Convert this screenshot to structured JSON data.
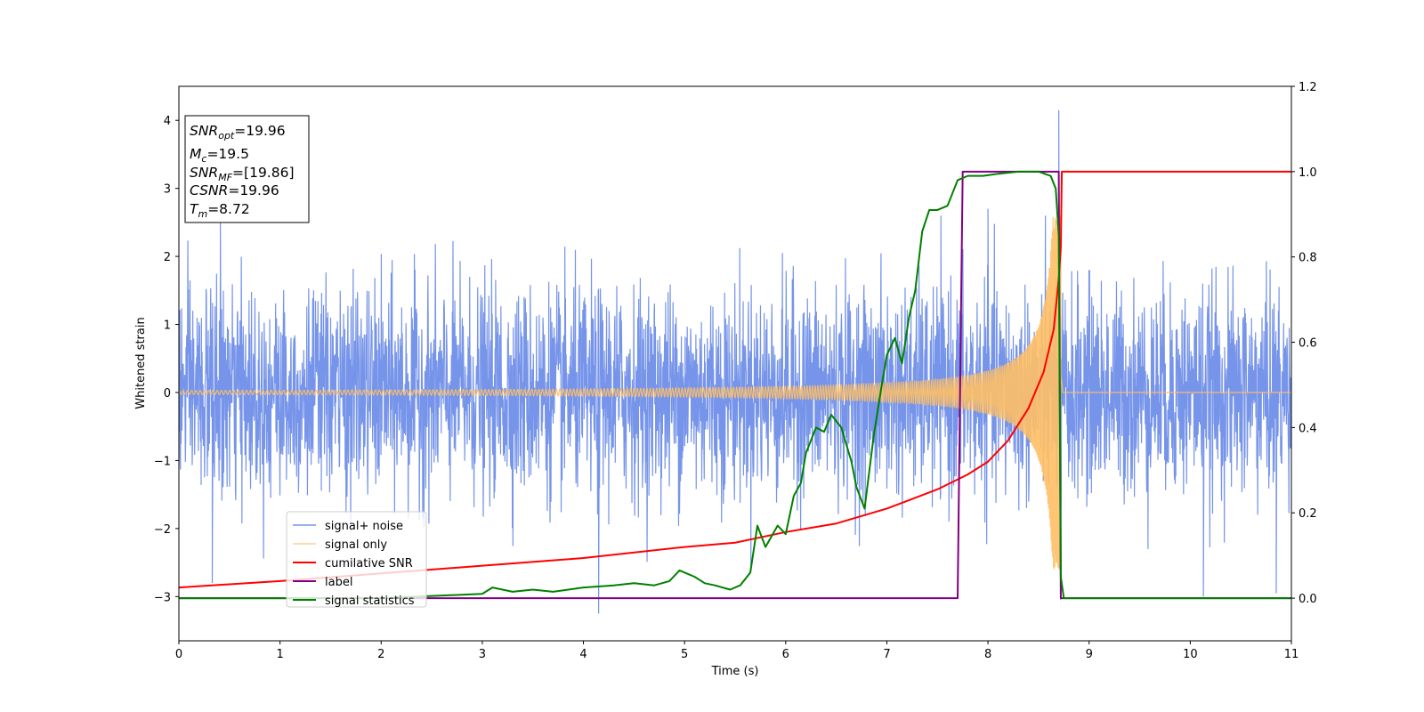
{
  "chart_data": {
    "type": "line",
    "xlabel": "Time (s)",
    "ylabel": "Whitened strain",
    "xlim": [
      0,
      11
    ],
    "ylim": [
      -3.65,
      4.5
    ],
    "ylim_right": [
      -0.1,
      1.2
    ],
    "xticks": [
      "0",
      "1",
      "2",
      "3",
      "4",
      "5",
      "6",
      "7",
      "8",
      "9",
      "10",
      "11"
    ],
    "yticks": [
      "−3",
      "−2",
      "−1",
      "0",
      "1",
      "2",
      "3",
      "4"
    ],
    "yticks_right": [
      "0.0",
      "0.2",
      "0.4",
      "0.6",
      "0.8",
      "1.0",
      "1.2"
    ],
    "grid": false,
    "legend_position": "lower-left",
    "annotation_box": {
      "position": "top-left",
      "lines": [
        {
          "base": "SNR",
          "sub": "opt",
          "value": "=19.96"
        },
        {
          "base": "M",
          "sub": "c",
          "value": "=19.5"
        },
        {
          "base": "SNR",
          "sub": "MF",
          "value": "=[19.86]"
        },
        {
          "base": "CSNR",
          "sub": "",
          "value": "=19.96"
        },
        {
          "base": "T",
          "sub": "m",
          "value": "=8.72"
        }
      ]
    },
    "series": [
      {
        "name": "signal+ noise",
        "axis": "left",
        "color": "#6f8ee8",
        "description": "whitened noisy strain, roughly standard normal around 0 with spikes",
        "noise_sigma": 0.75,
        "spikes": [
          [
            0.33,
            -2.8
          ],
          [
            0.41,
            2.55
          ],
          [
            4.15,
            -3.25
          ],
          [
            8.0,
            2.7
          ],
          [
            8.7,
            4.15
          ],
          [
            8.72,
            -3.05
          ],
          [
            10.13,
            -3.0
          ],
          [
            10.85,
            -2.95
          ]
        ]
      },
      {
        "name": "signal only",
        "axis": "left",
        "color": "#ffbf66",
        "description": "chirp signal, amplitude grows until merger time",
        "merger_time": 8.72,
        "start_amplitude": 0.03,
        "peak_amplitude": 2.6
      },
      {
        "name": "cumilative SNR",
        "axis": "right",
        "color": "#ff0000",
        "points": [
          [
            0,
            0.025
          ],
          [
            1,
            0.04
          ],
          [
            2,
            0.058
          ],
          [
            3,
            0.076
          ],
          [
            4,
            0.094
          ],
          [
            5,
            0.12
          ],
          [
            5.5,
            0.13
          ],
          [
            6,
            0.155
          ],
          [
            6.5,
            0.175
          ],
          [
            7,
            0.21
          ],
          [
            7.5,
            0.255
          ],
          [
            7.8,
            0.29
          ],
          [
            8,
            0.32
          ],
          [
            8.2,
            0.37
          ],
          [
            8.4,
            0.445
          ],
          [
            8.55,
            0.53
          ],
          [
            8.65,
            0.63
          ],
          [
            8.7,
            0.75
          ],
          [
            8.72,
            0.82
          ],
          [
            8.73,
            1.0
          ],
          [
            11,
            1.0
          ]
        ]
      },
      {
        "name": "label",
        "axis": "right",
        "color": "#800080",
        "points": [
          [
            0,
            0
          ],
          [
            7.7,
            0
          ],
          [
            7.75,
            1.0
          ],
          [
            8.7,
            1.0
          ],
          [
            8.72,
            0
          ],
          [
            11,
            0
          ]
        ]
      },
      {
        "name": "signal statistics",
        "axis": "right",
        "color": "#008000",
        "points": [
          [
            0,
            0
          ],
          [
            1,
            0
          ],
          [
            2,
            0
          ],
          [
            2.5,
            0.005
          ],
          [
            3.0,
            0.01
          ],
          [
            3.1,
            0.025
          ],
          [
            3.3,
            0.015
          ],
          [
            3.5,
            0.02
          ],
          [
            3.7,
            0.015
          ],
          [
            4.0,
            0.025
          ],
          [
            4.3,
            0.03
          ],
          [
            4.5,
            0.035
          ],
          [
            4.7,
            0.03
          ],
          [
            4.85,
            0.04
          ],
          [
            4.95,
            0.065
          ],
          [
            5.1,
            0.05
          ],
          [
            5.2,
            0.035
          ],
          [
            5.3,
            0.03
          ],
          [
            5.45,
            0.02
          ],
          [
            5.55,
            0.03
          ],
          [
            5.65,
            0.06
          ],
          [
            5.72,
            0.17
          ],
          [
            5.8,
            0.12
          ],
          [
            5.92,
            0.17
          ],
          [
            6.0,
            0.15
          ],
          [
            6.08,
            0.24
          ],
          [
            6.15,
            0.27
          ],
          [
            6.2,
            0.34
          ],
          [
            6.3,
            0.4
          ],
          [
            6.38,
            0.39
          ],
          [
            6.45,
            0.43
          ],
          [
            6.55,
            0.4
          ],
          [
            6.65,
            0.32
          ],
          [
            6.7,
            0.26
          ],
          [
            6.78,
            0.21
          ],
          [
            6.87,
            0.38
          ],
          [
            6.95,
            0.5
          ],
          [
            7.0,
            0.57
          ],
          [
            7.08,
            0.61
          ],
          [
            7.15,
            0.55
          ],
          [
            7.22,
            0.66
          ],
          [
            7.28,
            0.72
          ],
          [
            7.35,
            0.86
          ],
          [
            7.42,
            0.91
          ],
          [
            7.5,
            0.91
          ],
          [
            7.6,
            0.92
          ],
          [
            7.7,
            0.98
          ],
          [
            7.8,
            0.99
          ],
          [
            7.95,
            0.99
          ],
          [
            8.1,
            0.995
          ],
          [
            8.3,
            1.0
          ],
          [
            8.5,
            1.0
          ],
          [
            8.62,
            0.99
          ],
          [
            8.67,
            0.96
          ],
          [
            8.7,
            0.85
          ],
          [
            8.72,
            0.05
          ],
          [
            8.75,
            0.0
          ],
          [
            11,
            0
          ]
        ]
      }
    ]
  }
}
